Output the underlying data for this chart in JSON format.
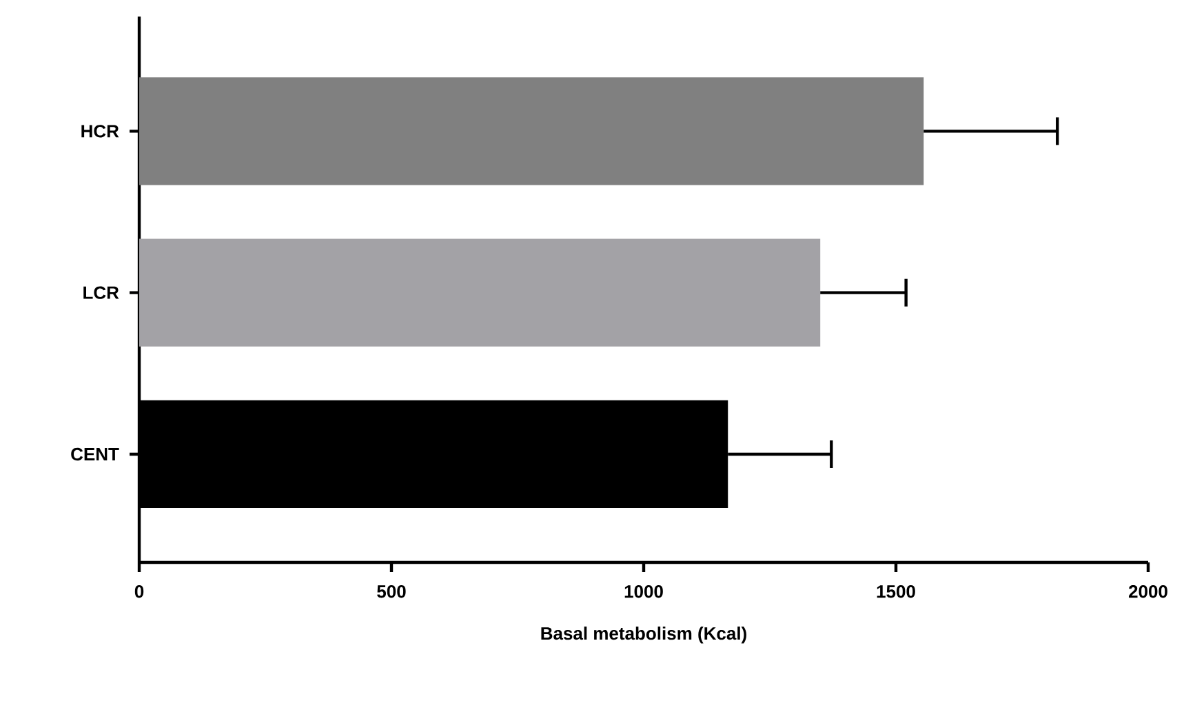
{
  "chart_data": {
    "type": "bar",
    "orientation": "horizontal",
    "xlabel": "Basal metabolism (Kcal)",
    "categories": [
      "HCR",
      "LCR",
      "CENT"
    ],
    "values": [
      1555,
      1350,
      1167
    ],
    "errors": [
      [
        1555,
        1820
      ],
      [
        1350,
        1520
      ],
      [
        1167,
        1372
      ]
    ],
    "colors": [
      "#808080",
      "#a3a2a6",
      "#000000"
    ],
    "xlim": [
      0,
      2000
    ],
    "xticks": [
      0,
      500,
      1000,
      1500,
      2000
    ]
  }
}
